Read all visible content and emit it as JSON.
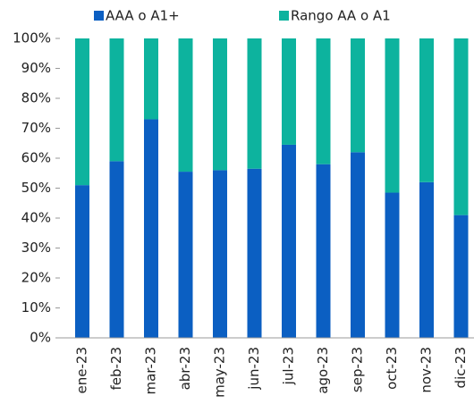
{
  "chart_data": {
    "type": "stacked_bar",
    "categories": [
      "ene-23",
      "feb-23",
      "mar-23",
      "abr-23",
      "may-23",
      "jun-23",
      "jul-23",
      "ago-23",
      "sep-23",
      "oct-23",
      "nov-23",
      "dic-23"
    ],
    "series": [
      {
        "name": "AAA o A1+",
        "color": "#0b5fc2",
        "values": [
          51,
          59,
          73,
          55.5,
          56,
          56.5,
          64.5,
          58,
          62,
          48.5,
          52,
          41
        ]
      },
      {
        "name": "Rango AA o A1",
        "color": "#0db39e",
        "values": [
          49,
          41,
          27,
          44.5,
          44,
          43.5,
          35.5,
          42,
          38,
          51.5,
          48,
          59
        ]
      }
    ],
    "ylim": [
      0,
      100
    ],
    "yticks": [
      {
        "value": 0,
        "label": "0%"
      },
      {
        "value": 10,
        "label": "10%"
      },
      {
        "value": 20,
        "label": "20%"
      },
      {
        "value": 30,
        "label": "30%"
      },
      {
        "value": 40,
        "label": "40%"
      },
      {
        "value": 50,
        "label": "50%"
      },
      {
        "value": 60,
        "label": "60%"
      },
      {
        "value": 70,
        "label": "70%"
      },
      {
        "value": 80,
        "label": "80%"
      },
      {
        "value": 90,
        "label": "90%"
      },
      {
        "value": 100,
        "label": "100%"
      }
    ],
    "legend": "top"
  }
}
